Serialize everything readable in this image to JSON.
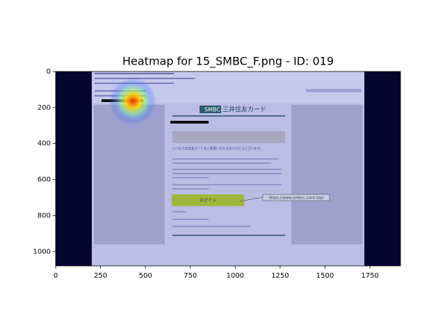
{
  "chart_data": {
    "type": "heatmap",
    "title": "Heatmap for 15_SMBC_F.png - ID: 019",
    "xlim": [
      0,
      1920
    ],
    "ylim": [
      1080,
      0
    ],
    "xticks": [
      0,
      250,
      500,
      750,
      1000,
      1250,
      1500,
      1750
    ],
    "yticks": [
      0,
      200,
      400,
      600,
      800,
      1000
    ],
    "hotspots": [
      {
        "x": 430,
        "y": 165
      }
    ],
    "screenshot": {
      "logo": "SMBC",
      "brand": "三井住友カード",
      "greeting": "いつも三井住友カードをご利用いただきありがとうございます。",
      "button": "ログイン",
      "link": "https://www.smbcc-card.top/"
    }
  }
}
